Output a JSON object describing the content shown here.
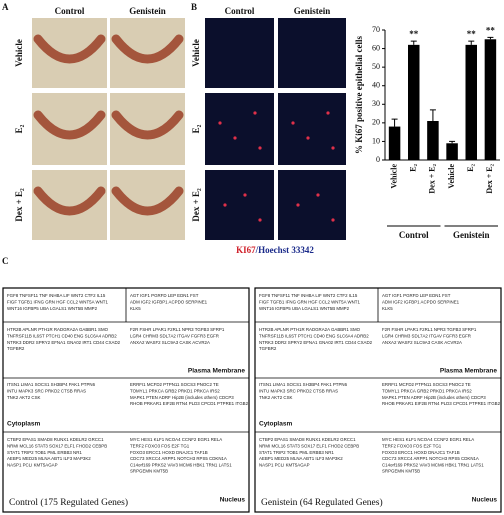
{
  "panel_a": {
    "letter": "A",
    "columns": [
      "Control",
      "Genistein"
    ],
    "rows": [
      "Vehicle",
      "E₂",
      "Dex + E₂"
    ]
  },
  "panel_b": {
    "letter": "B",
    "columns": [
      "Control",
      "Genistein"
    ],
    "rows": [
      "Vehicle",
      "E₂",
      "Dex + E₂"
    ],
    "stain": [
      "KI67",
      "/Hoechst 33342"
    ]
  },
  "chart_data": {
    "type": "bar",
    "y_label": "% Ki67 positive epithelial cells",
    "categories": [
      "Vehicle",
      "E₂",
      "Dex + E₂",
      "Vehicle",
      "E₂",
      "Dex + E₂"
    ],
    "groups": [
      "Control",
      "Genistein"
    ],
    "values": [
      18,
      62,
      21,
      9,
      62,
      65
    ],
    "errors": [
      4,
      2,
      6,
      1,
      2,
      1
    ],
    "color": "#000000",
    "ylim": [
      0,
      70
    ],
    "yticks": [
      0,
      10,
      20,
      30,
      40,
      50,
      60,
      70
    ],
    "annotations": [
      {
        "index": 1,
        "text": "**"
      },
      {
        "index": 4,
        "text": "**"
      },
      {
        "index": 5,
        "text": "**"
      }
    ]
  },
  "panel_c": {
    "letter": "C",
    "boxes": [
      {
        "title": "Control (175 Regulated Genes)",
        "top": {
          "left": [
            "FGF8 TNFSF11 TNF INHBA LIF WNT2 CTF2 IL15",
            "FIGF TGFB1 IFNG GRN HGF CCL2 WNT5A WNT1",
            "WNT16 IGFBP5 UBA LGALS1 WNT5B MMP2"
          ],
          "right": [
            "AGT IGF1 PGRFD LEP EDN1 FST",
            "ADM IGF2 IGFBP1 ACPDO SERPINE1",
            "KLK5"
          ]
        },
        "membrane": {
          "label": "Plasma Membrane",
          "left": [
            "HTR2B APLNR PTH1R RADGRA2A GABBR1 SMO",
            "TNFRSF11B IL6ST PTCH1 CD40 ENG SLC6A4 ADRB2",
            "NTRK3 DDR2 SPRY2 EFNA1 GNA02 IRT1 CD44 CXAD2",
            "TGFBR2"
          ],
          "right": [
            "F2R FSHR LPAR1 F2RL1 NPR3 TGFB3 SFRP1",
            "LGR4 CHRM3 SDL7A2 ITGAV FGFR3 EGFR",
            "ANXA2 WASF2 SLC9A3 CASK ACVR2A"
          ]
        },
        "cytoplasm": {
          "label": "Cytoplasm",
          "left": [
            "ITSN1 LIMA1 SOCS1 SH3BP4 PAK1 PTPN6",
            "INTU MAPK3 SRC PRKD2 CTSB RRAS",
            "TNK2 AKT2 CSK"
          ],
          "right": [
            "ERRFI1 MCFD2 PTPN11 SOCS3 PNOC2 TE",
            "TOMYL1 PRKCA GRB2 PRKD1 PRKCA IRS2",
            "MAPK1 PTEN ADRF Hip2B (includes others) CDCP3",
            "RHOB PRKAR1 EIF2B RTN4 PLD3 CPCD1 PTPRE1 ITGB2"
          ]
        },
        "nucleus": {
          "label": "Nucleus",
          "left": [
            "CTBP2 EPAS1 SMAD8 RUNX1 KDELR2 GRCC1",
            "NRMI MCL16 STAT3 SOX17 ELF1 FHOD2 CEBPB",
            "STAT1 TRIP2 TOB1 PML ERBB3 NR1",
            "AEBP1 MED25 MLNA ABT1 ILF3 MAP3K2",
            "NASP1 PCLI KMT5AGAP"
          ],
          "right": [
            "MYC HES1 KLF1 NCOA4 CCNF2 EGR1 RELA",
            "TERF2 FOXO3 FOS E2F TG1",
            "FOXO3 ERCC1 HOXD DNAJC1 TAF1B",
            "CDC73 XRCC4 ARPP1 NOTCH3 RPS5 CDKN1A",
            "C14orf169 PRKS2 VAV3 MCM6 HBK1 TRN1 LATS1",
            "SRPGEMN KMT5B"
          ]
        }
      },
      {
        "title": "Genistein (64 Regulated Genes)",
        "top": {
          "left": [
            "FGF8 TNFSF11 TNF INHBA LIF WNT2 CTF2 IL15",
            "FIGF TGFB1 IFNG GRN HGF CCL2 WNT5A WNT1",
            "WNT16 IGFBP5 UBA LGALS1 WNT5B MMP2"
          ],
          "right": [
            "AGT IGF1 PGRFD LEP EDN1 FST",
            "ADM IGF2 IGFBP1 ACPDO SERPINE1",
            "KLK5"
          ]
        },
        "membrane": {
          "label": "Plasma Membrane",
          "left": [
            "HTR2B APLNR PTH1R RADGRA2A GABBR1 SMO",
            "TNFRSF11B IL6ST PTCH1 CD40 ENG SLC6A4 ADRB2",
            "NTRK3 DDR2 SPRY2 EFNA1 GNA02 IRT1 CD44 CXAD2",
            "TGFBR2"
          ],
          "right": [
            "F2R FSHR LPAR1 F2RL1 NPR3 TGFB3 SFRP1",
            "LGR4 CHRM3 SDL7A2 ITGAV FGFR3 EGFR",
            "ANXA2 WASF2 SLC9A3 CASK ACVR2A"
          ]
        },
        "cytoplasm": {
          "label": "Cytoplasm",
          "left": [
            "ITSN1 LIMA1 SOCS1 SH3BP4 PAK1 PTPN6",
            "INTU MAPK3 SRC PRKD2 CTSB RRAS",
            "TNK2 AKT2 CSK"
          ],
          "right": [
            "ERRFI1 MCFD2 PTPN11 SOCS3 PNOC2 TE",
            "TOMYL1 PRKCA GRB2 PRKD1 PRKCA IRS2",
            "MAPK1 PTEN ADRF Hip2B (includes others) CDCP3",
            "RHOB PRKAR1 EIF2B RTN4 PLD3 CPCD1 PTPRE1 ITGB2"
          ]
        },
        "nucleus": {
          "label": "Nucleus",
          "left": [
            "CTBP2 EPAS1 SMAD8 RUNX1 KDELR2 GRCC1",
            "NRMI MCL16 STAT3 SOX17 ELF1 FHOD2 CEBPB",
            "STAT1 TRIP2 TOB1 PML ERBB3 NR1",
            "AEBP1 MED25 MLNA ABT1 ILF3 MAP3K2",
            "NASP1 PCLI KMT5AGAP"
          ],
          "right": [
            "MYC HES1 KLF1 NCOA4 CCNF2 EGR1 RELA",
            "TERF2 FOXO3 FOS E2F TG1",
            "FOXO3 ERCC1 HOXD DNAJC1 TAF1B",
            "CDC73 XRCC4 ARPP1 NOTCH3 RPS5 CDKN1A",
            "C14orf169 PRKS2 VAV3 MCM6 HBK1 TRN1 LATS1",
            "SRPGEMN KMT5B"
          ]
        }
      }
    ]
  }
}
